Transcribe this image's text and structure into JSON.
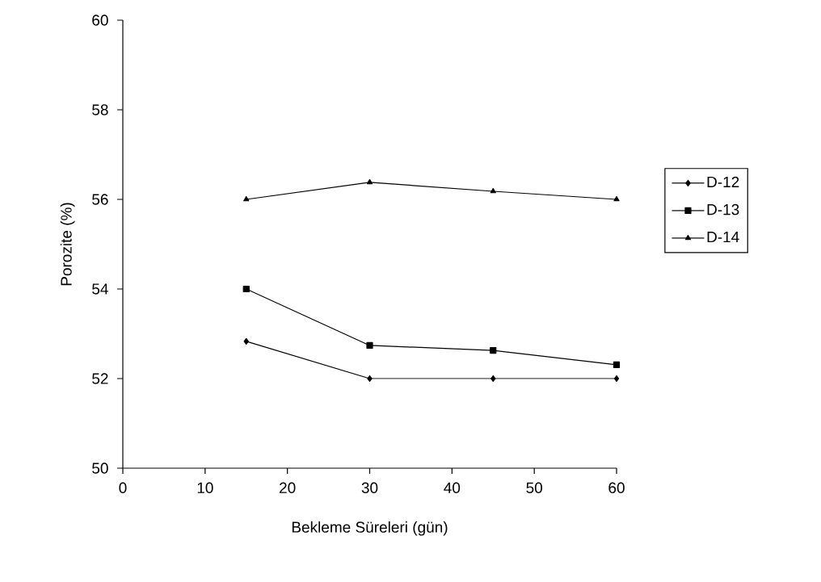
{
  "chart_data": {
    "type": "line",
    "xlabel": "Bekleme Süreleri (gün)",
    "ylabel": "Porozite (%)",
    "x": [
      15,
      30,
      45,
      60
    ],
    "series": [
      {
        "name": "D-12",
        "color": "#000000",
        "marker": "diamond",
        "values": [
          52.83,
          52.0,
          52.0,
          52.0
        ]
      },
      {
        "name": "D-13",
        "color": "#000000",
        "marker": "square",
        "values": [
          54.0,
          52.74,
          52.63,
          52.31
        ]
      },
      {
        "name": "D-14",
        "color": "#000000",
        "marker": "triangle",
        "values": [
          56.0,
          56.38,
          56.18,
          56.0
        ]
      }
    ],
    "xlim": [
      0,
      60
    ],
    "ylim": [
      50,
      60
    ],
    "xticks": [
      0,
      10,
      20,
      30,
      40,
      50,
      60
    ],
    "yticks": [
      50,
      52,
      54,
      56,
      58,
      60
    ],
    "grid": false,
    "legend": "right",
    "line_style": "solid"
  }
}
